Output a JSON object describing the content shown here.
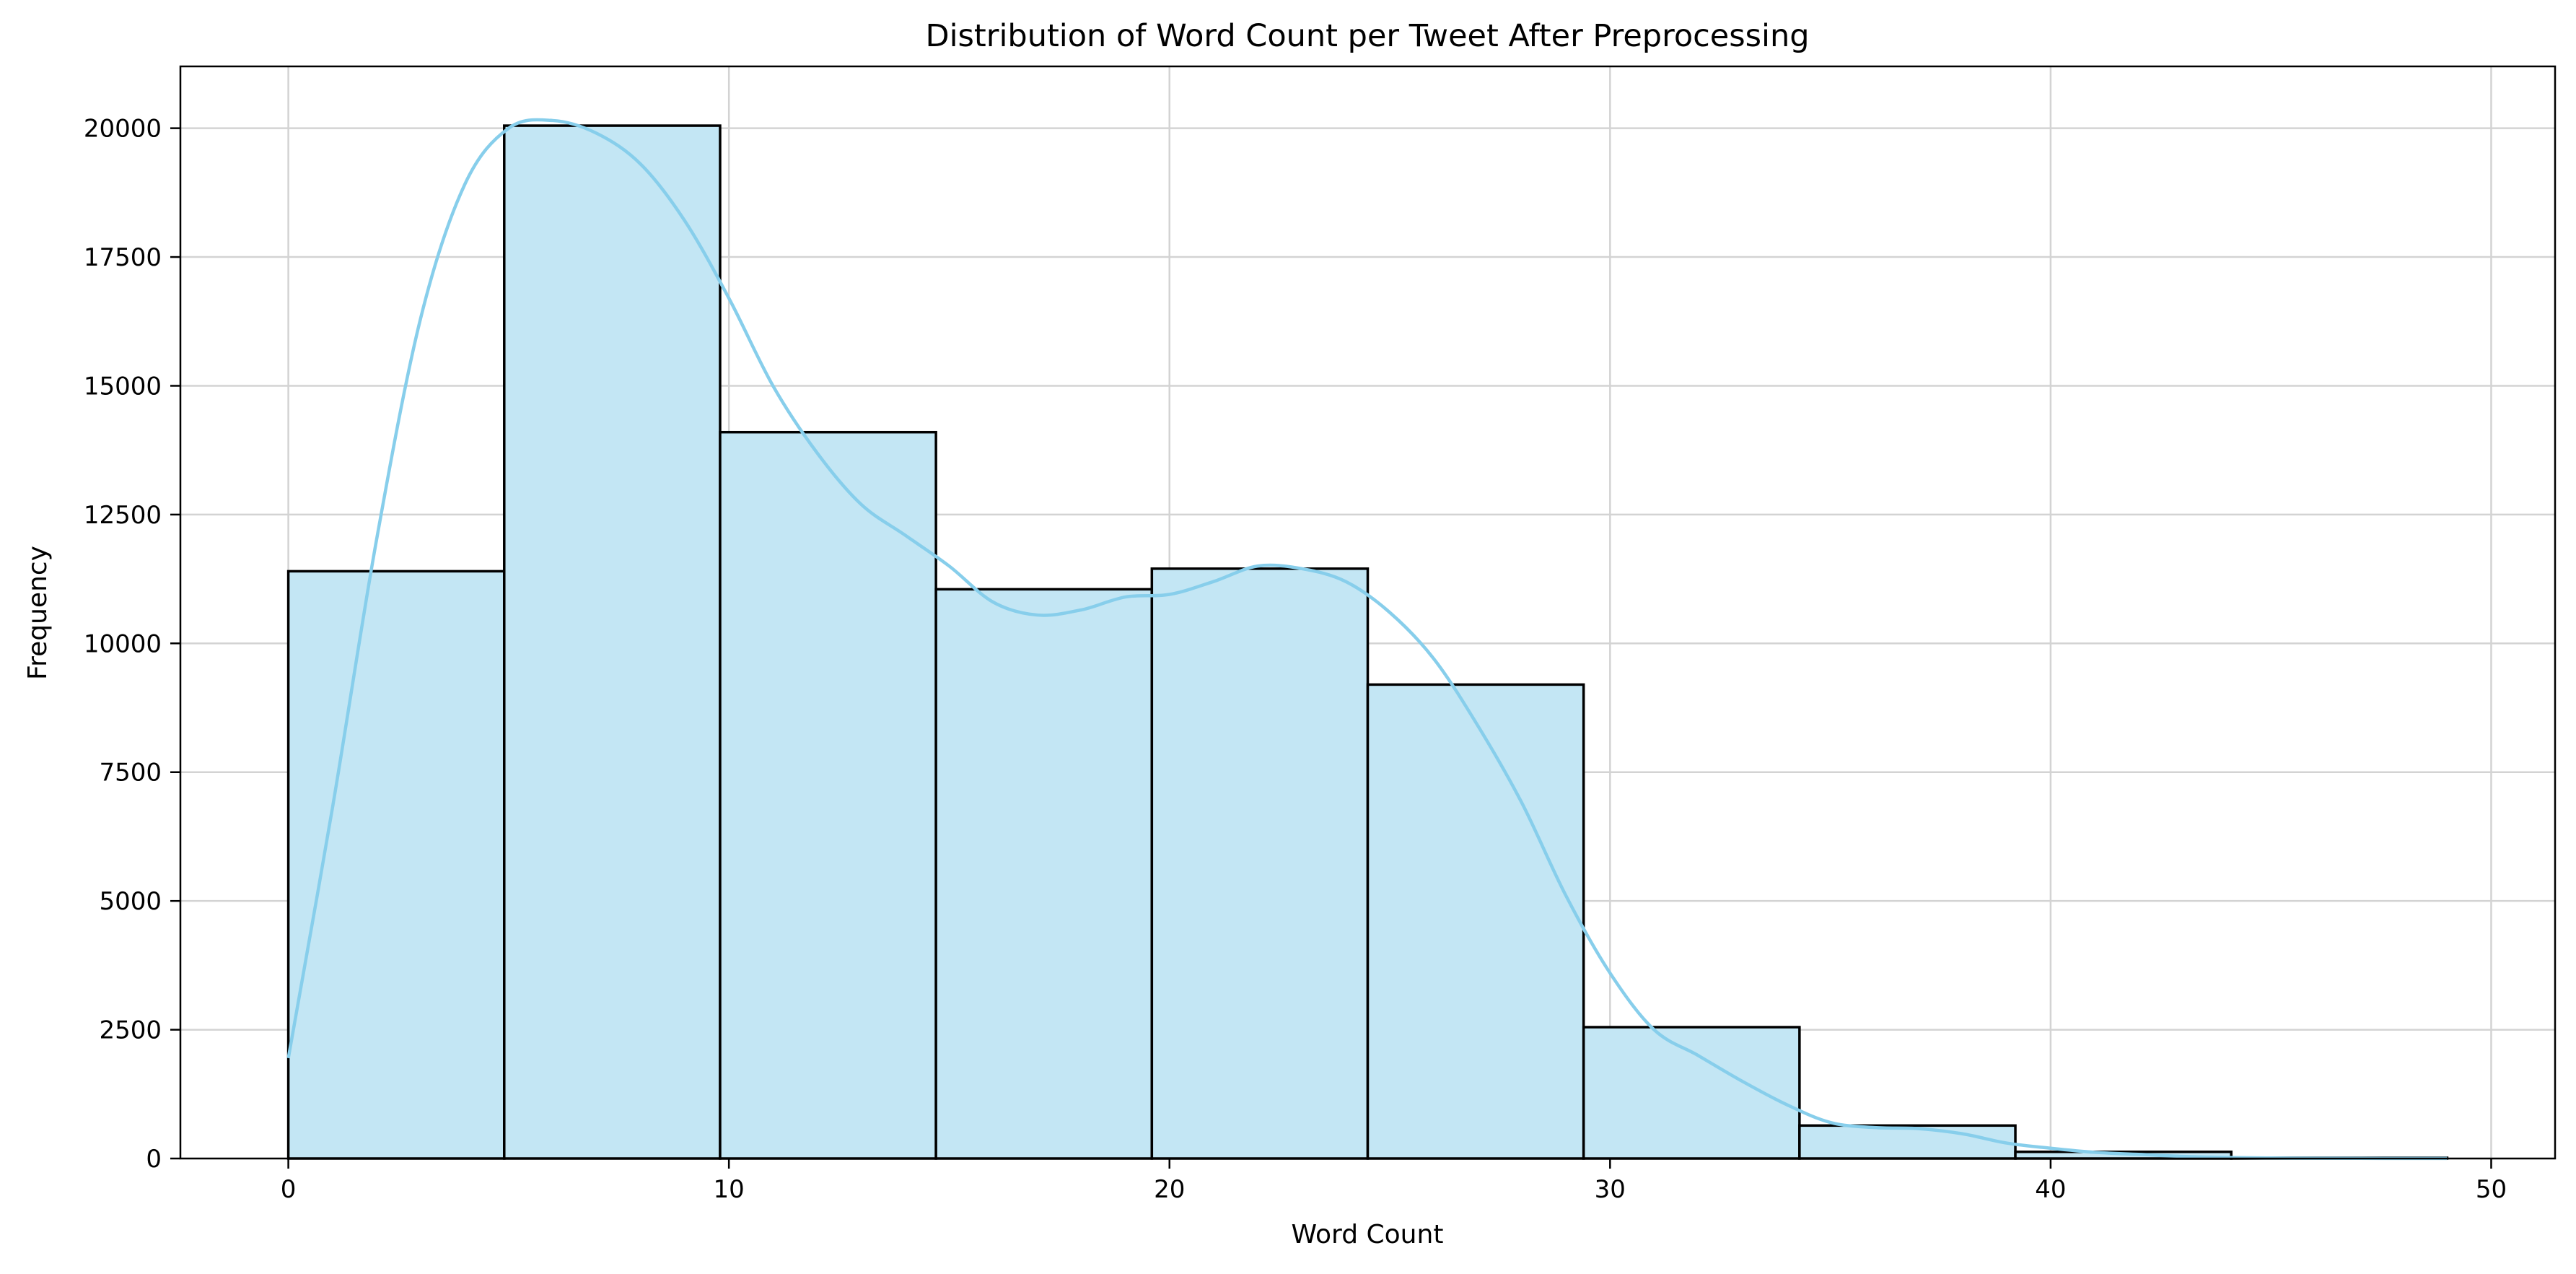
{
  "chart_data": {
    "type": "bar",
    "title": "Distribution of Word Count per Tweet After Preprocessing",
    "xlabel": "Word Count",
    "ylabel": "Frequency",
    "xlim": [
      -2.45,
      51.45
    ],
    "ylim": [
      0,
      21200
    ],
    "xticks": [
      0,
      10,
      20,
      30,
      40,
      50
    ],
    "yticks": [
      0,
      2500,
      5000,
      7500,
      10000,
      12500,
      15000,
      17500,
      20000
    ],
    "grid": true,
    "bins": [
      {
        "x0": 0.0,
        "x1": 4.9,
        "value": 11400
      },
      {
        "x0": 4.9,
        "x1": 9.8,
        "value": 20050
      },
      {
        "x0": 9.8,
        "x1": 14.7,
        "value": 14100
      },
      {
        "x0": 14.7,
        "x1": 19.6,
        "value": 11050
      },
      {
        "x0": 19.6,
        "x1": 24.5,
        "value": 11450
      },
      {
        "x0": 24.5,
        "x1": 29.4,
        "value": 9200
      },
      {
        "x0": 29.4,
        "x1": 34.3,
        "value": 2550
      },
      {
        "x0": 34.3,
        "x1": 39.2,
        "value": 640
      },
      {
        "x0": 39.2,
        "x1": 44.1,
        "value": 130
      },
      {
        "x0": 44.1,
        "x1": 49.0,
        "value": 15
      }
    ],
    "kde": {
      "x": [
        0,
        1,
        2,
        3,
        4,
        5,
        6,
        7,
        8,
        9,
        10,
        11,
        12,
        13,
        14,
        15,
        16,
        17,
        18,
        19,
        20,
        21,
        22,
        23,
        24,
        25,
        26,
        27,
        28,
        29,
        30,
        31,
        32,
        33,
        34,
        35,
        36,
        37,
        38,
        39,
        40,
        41,
        42,
        43,
        44,
        45,
        46,
        47,
        48,
        49
      ],
      "y": [
        1950,
        6800,
        12000,
        16300,
        18900,
        20000,
        20150,
        19900,
        19300,
        18200,
        16700,
        15000,
        13700,
        12700,
        12100,
        11500,
        10800,
        10550,
        10650,
        10900,
        10950,
        11200,
        11500,
        11450,
        11200,
        10600,
        9700,
        8400,
        6900,
        5100,
        3600,
        2500,
        2000,
        1500,
        1050,
        700,
        600,
        580,
        480,
        300,
        200,
        120,
        80,
        40,
        20,
        10,
        5,
        3,
        2,
        1
      ]
    },
    "colors": {
      "bar_fill": "#c3e6f4",
      "bar_edge": "#000000",
      "kde_line": "#87ceeb",
      "grid": "#d3d3d3"
    }
  }
}
